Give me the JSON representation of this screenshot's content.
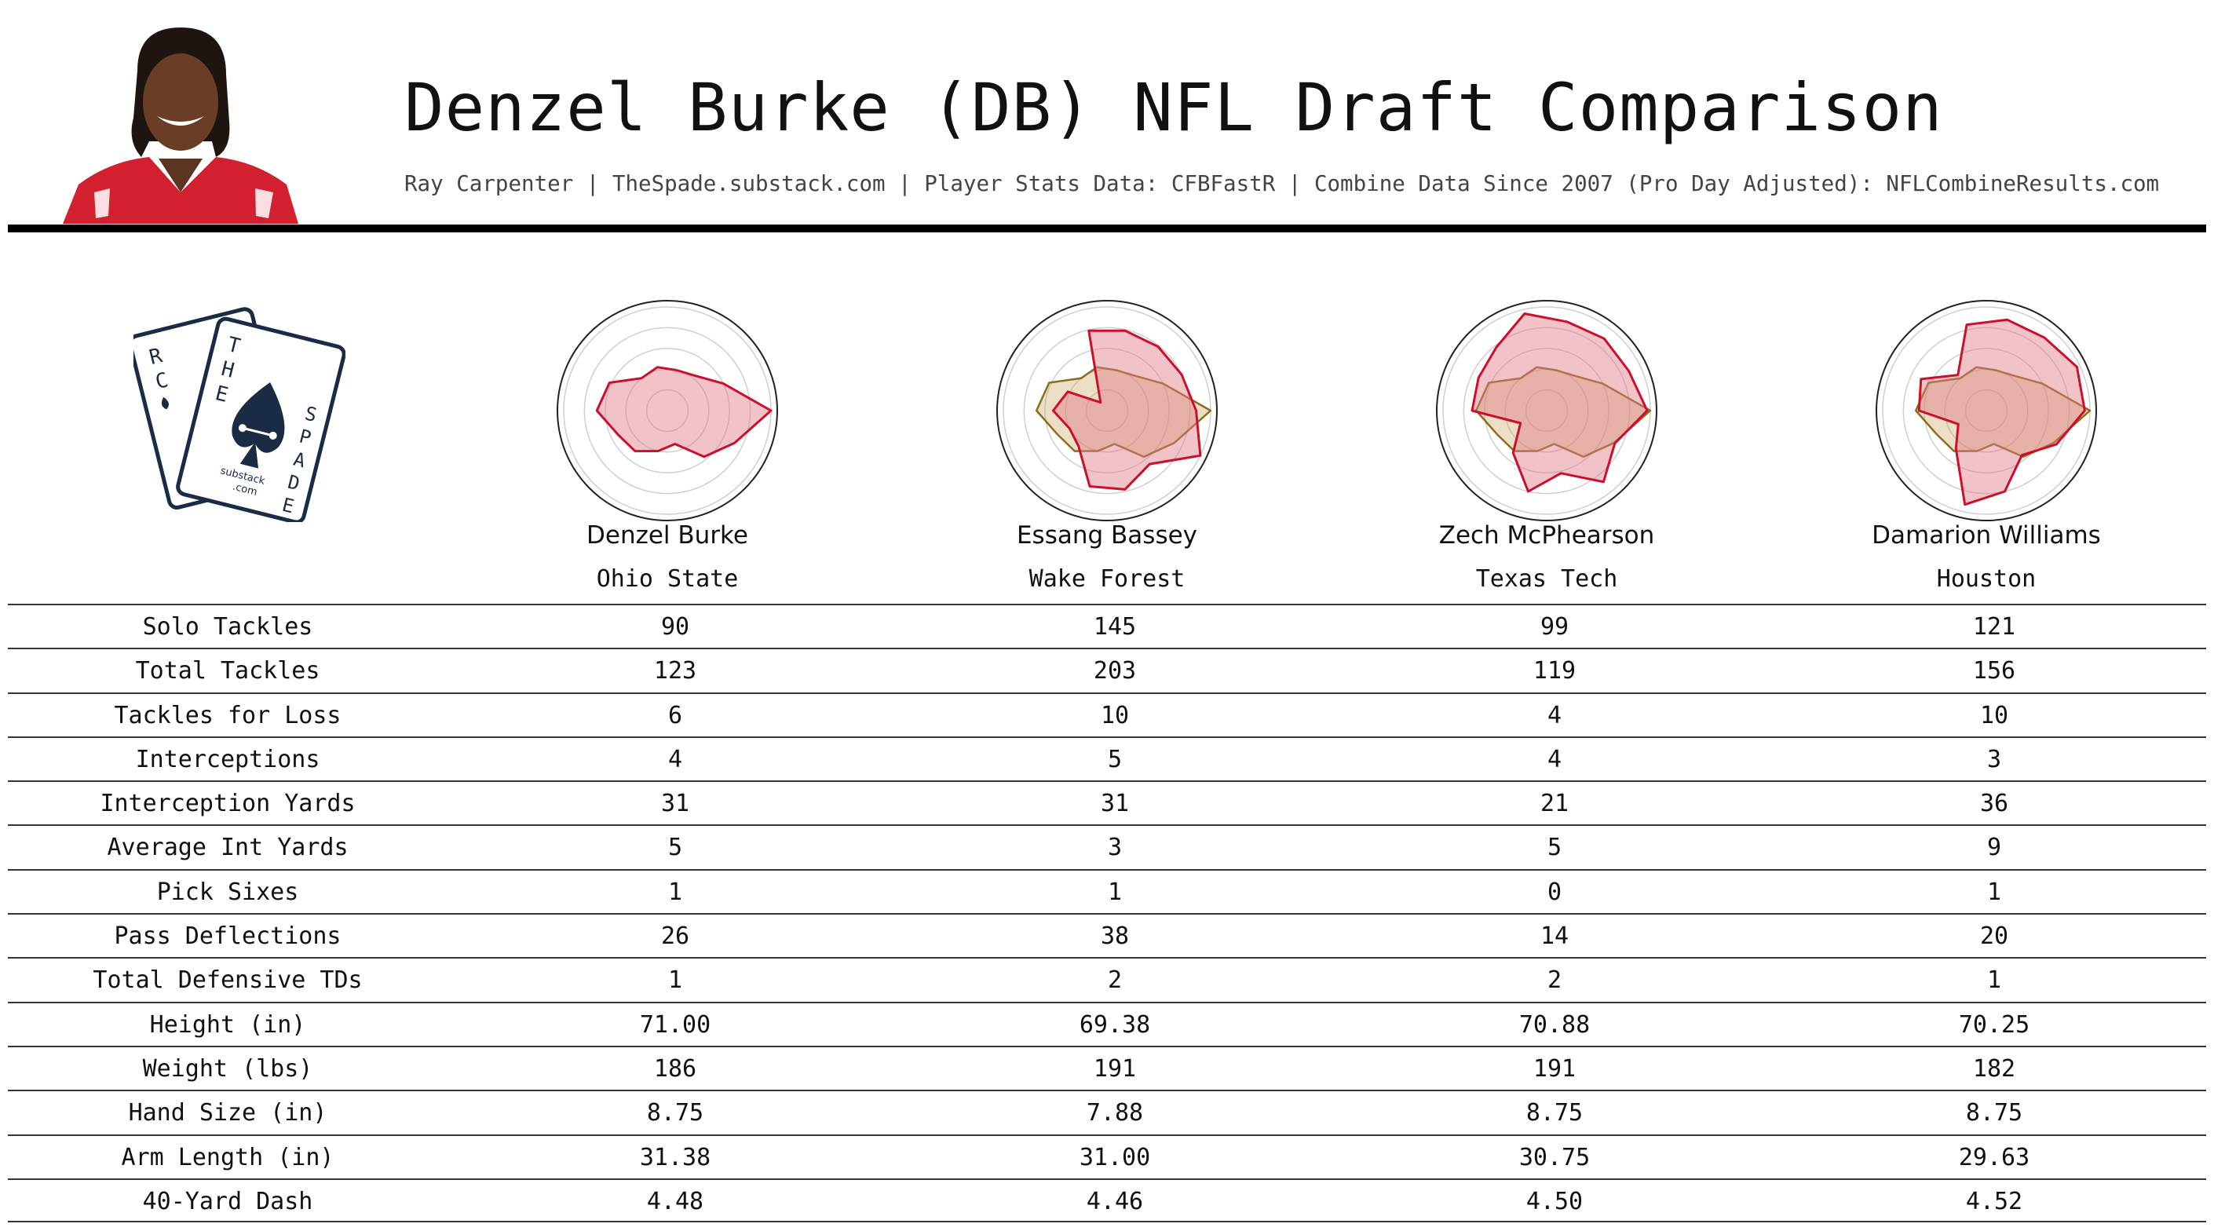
{
  "header": {
    "title": "Denzel Burke (DB) NFL Draft Comparison",
    "subtitle": "Ray Carpenter | TheSpade.substack.com | Player Stats Data: CFBFastR | Combine Data Since 2007 (Pro Day Adjusted): NFLCombineResults.com"
  },
  "logo": {
    "left_card_letters": [
      "R",
      "C"
    ],
    "right_card_letters_top": [
      "T",
      "H",
      "E"
    ],
    "right_card_letters_side": [
      "S",
      "P",
      "A",
      "D",
      "E"
    ],
    "substack_text": "substack",
    "com_text": ".com"
  },
  "colors": {
    "radar_fill": "#e07a86",
    "radar_stroke": "#cc0f2b",
    "comparison_fill": "#c9a25a",
    "comparison_stroke": "#8a6d1f",
    "rule": "#111111",
    "jersey_red": "#d3202e"
  },
  "players": [
    {
      "name": "Denzel Burke",
      "school": "Ohio State"
    },
    {
      "name": "Essang Bassey",
      "school": "Wake Forest"
    },
    {
      "name": "Zech McPhearson",
      "school": "Texas Tech"
    },
    {
      "name": "Damarion Williams",
      "school": "Houston"
    }
  ],
  "stats": [
    {
      "label": "Solo Tackles",
      "values": [
        "90",
        "145",
        "99",
        "121"
      ]
    },
    {
      "label": "Total Tackles",
      "values": [
        "123",
        "203",
        "119",
        "156"
      ]
    },
    {
      "label": "Tackles for Loss",
      "values": [
        "6",
        "10",
        "4",
        "10"
      ]
    },
    {
      "label": "Interceptions",
      "values": [
        "4",
        "5",
        "4",
        "3"
      ]
    },
    {
      "label": "Interception Yards",
      "values": [
        "31",
        "31",
        "21",
        "36"
      ]
    },
    {
      "label": "Average Int Yards",
      "values": [
        "5",
        "3",
        "5",
        "9"
      ]
    },
    {
      "label": "Pick Sixes",
      "values": [
        "1",
        "1",
        "0",
        "1"
      ]
    },
    {
      "label": "Pass Deflections",
      "values": [
        "26",
        "38",
        "14",
        "20"
      ]
    },
    {
      "label": "Total Defensive TDs",
      "values": [
        "1",
        "2",
        "2",
        "1"
      ]
    },
    {
      "label": "Height (in)",
      "values": [
        "71.00",
        "69.38",
        "70.88",
        "70.25"
      ]
    },
    {
      "label": "Weight (lbs)",
      "values": [
        "186",
        "191",
        "191",
        "182"
      ]
    },
    {
      "label": "Hand Size (in)",
      "values": [
        "8.75",
        "7.88",
        "8.75",
        "8.75"
      ]
    },
    {
      "label": "Arm Length (in)",
      "values": [
        "31.38",
        "31.00",
        "30.75",
        "29.63"
      ]
    },
    {
      "label": "40-Yard Dash",
      "values": [
        "4.48",
        "4.46",
        "4.50",
        "4.52"
      ]
    }
  ],
  "chart_data": {
    "type": "radar",
    "rings": 5,
    "scale_max": 1.0,
    "series": [
      {
        "values": [
          1.0,
          0.72,
          0.57,
          0.33,
          0.4,
          0.5,
          0.53,
          0.68,
          0.62,
          0.4,
          0.43,
          0.4,
          0.43,
          0.6
        ]
      },
      {
        "values": [
          0.86,
          1.0,
          0.66,
          0.78,
          0.75,
          0.44,
          0.4,
          0.52,
          0.42,
          0.1,
          0.79,
          0.79,
          0.79,
          0.8
        ]
      },
      {
        "values": [
          0.97,
          0.73,
          0.88,
          0.62,
          0.8,
          0.52,
          0.28,
          0.72,
          0.73,
          0.78,
          0.96,
          0.88,
          0.89,
          0.88
        ]
      },
      {
        "values": [
          0.95,
          0.75,
          0.55,
          0.8,
          0.93,
          0.47,
          0.3,
          0.65,
          0.7,
          0.44,
          0.85,
          0.9,
          0.9,
          0.97
        ]
      }
    ]
  }
}
